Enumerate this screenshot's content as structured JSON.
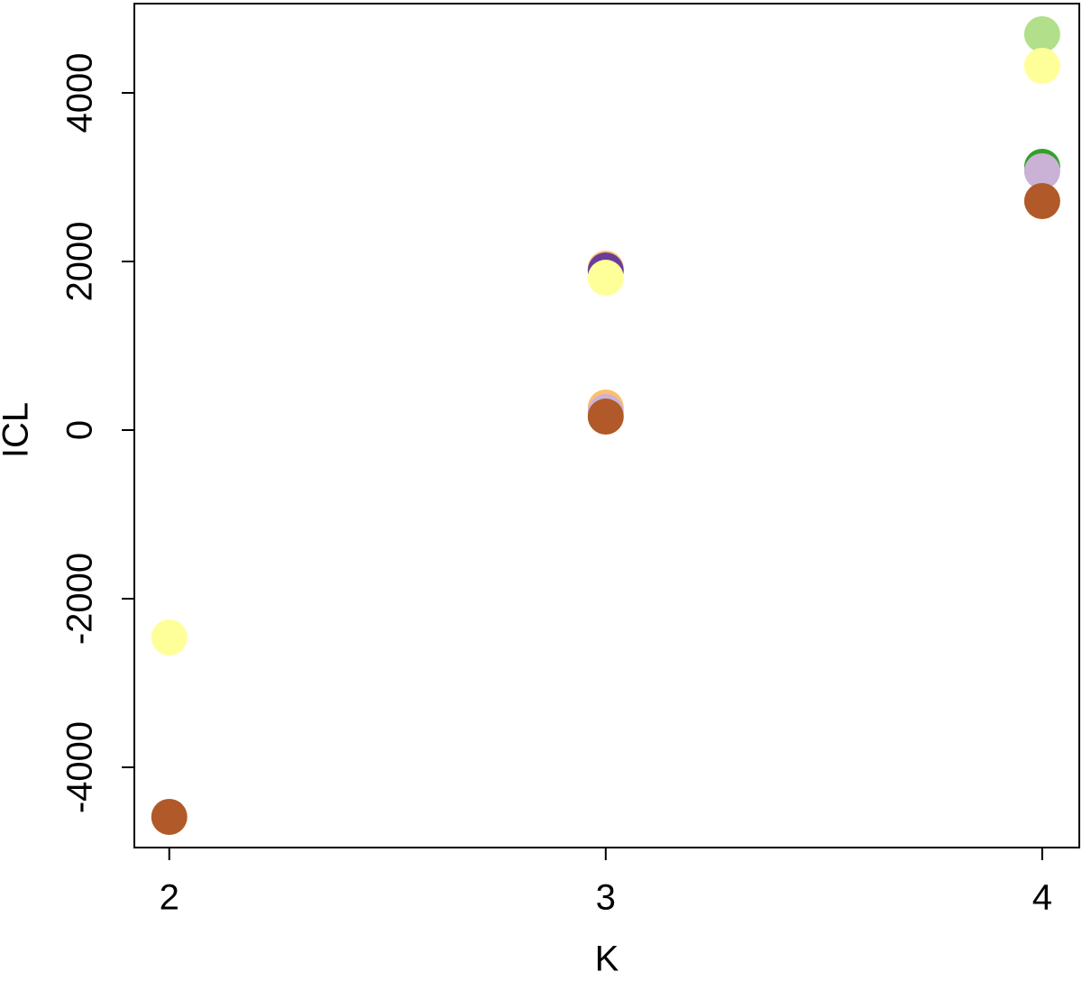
{
  "chart_data": {
    "type": "scatter",
    "x_label": "K",
    "y_label": "ICL",
    "xlim": [
      1.92,
      4.085
    ],
    "ylim": [
      -4952,
      5059
    ],
    "xticks": [
      2,
      3,
      4
    ],
    "yticks": [
      -4000,
      -2000,
      0,
      2000,
      4000
    ],
    "series": [
      {
        "color": "#FDBF6F",
        "x": [
          3,
          3
        ],
        "values": [
          1915,
          267
        ]
      },
      {
        "color": "#6A3D9A",
        "x": [
          3
        ],
        "values": [
          1893
        ]
      },
      {
        "color": "#B2DF8A",
        "x": [
          4
        ],
        "values": [
          4695
        ]
      },
      {
        "color": "#33A02C",
        "x": [
          4
        ],
        "values": [
          3123
        ]
      },
      {
        "color": "#CAB2D6",
        "x": [
          3,
          4
        ],
        "values": [
          214,
          3070
        ]
      },
      {
        "color": "#FFFF99",
        "x": [
          2,
          3,
          4
        ],
        "values": [
          -2460,
          1807,
          4321
        ]
      },
      {
        "color": "#B15928",
        "x": [
          2,
          3,
          4
        ],
        "values": [
          -4588,
          160,
          2717
        ]
      }
    ]
  }
}
